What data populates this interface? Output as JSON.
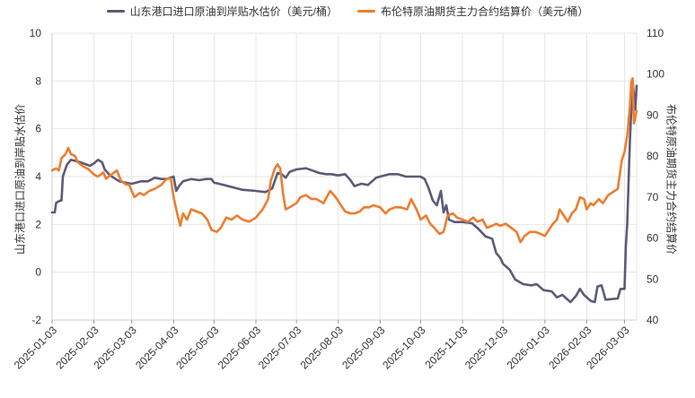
{
  "chart_data": {
    "type": "line",
    "title": "",
    "xlabel": "",
    "ylabel_left": "山东港口进口原油到岸贴水估价",
    "ylabel_right": "布伦特原油期货主力合约结算价",
    "x_ticks": [
      "2025-01-03",
      "2025-02-03",
      "2025-03-03",
      "2025-04-03",
      "2025-05-03",
      "2025-06-03",
      "2025-07-03",
      "2025-08-03",
      "2025-09-03",
      "2025-10-03",
      "2025-11-03",
      "2025-12-03",
      "2026-01-03",
      "2026-02-03",
      "2026-03-03"
    ],
    "x_range": [
      "2025-01-03",
      "2026-03-12"
    ],
    "y_left": {
      "min": -2,
      "max": 10,
      "ticks": [
        -2,
        0,
        2,
        4,
        6,
        8,
        10
      ]
    },
    "y_right": {
      "min": 40,
      "max": 110,
      "ticks": [
        40,
        50,
        60,
        70,
        80,
        90,
        100,
        110
      ]
    },
    "grid": true,
    "legend_position": "top",
    "series": [
      {
        "name": "山东港口进口原油到岸贴水估价（美元/桶）",
        "axis": "left",
        "color": "#5b5b78",
        "points": [
          [
            "2025-01-03",
            2.5
          ],
          [
            "2025-01-05",
            2.5
          ],
          [
            "2025-01-06",
            2.9
          ],
          [
            "2025-01-09",
            3.0
          ],
          [
            "2025-01-10",
            3.0
          ],
          [
            "2025-01-11",
            4.0
          ],
          [
            "2025-01-14",
            4.5
          ],
          [
            "2025-01-17",
            4.7
          ],
          [
            "2025-01-24",
            4.6
          ],
          [
            "2025-01-31",
            4.45
          ],
          [
            "2025-02-03",
            4.55
          ],
          [
            "2025-02-06",
            4.7
          ],
          [
            "2025-02-09",
            4.6
          ],
          [
            "2025-02-11",
            4.3
          ],
          [
            "2025-02-15",
            4.05
          ],
          [
            "2025-02-19",
            3.9
          ],
          [
            "2025-02-22",
            3.8
          ],
          [
            "2025-02-26",
            3.75
          ],
          [
            "2025-03-03",
            3.7
          ],
          [
            "2025-03-10",
            3.8
          ],
          [
            "2025-03-15",
            3.8
          ],
          [
            "2025-03-20",
            3.95
          ],
          [
            "2025-03-25",
            3.9
          ],
          [
            "2025-03-29",
            3.9
          ],
          [
            "2025-04-03",
            4.0
          ],
          [
            "2025-04-05",
            3.4
          ],
          [
            "2025-04-07",
            3.6
          ],
          [
            "2025-04-10",
            3.8
          ],
          [
            "2025-04-16",
            3.9
          ],
          [
            "2025-04-22",
            3.85
          ],
          [
            "2025-04-27",
            3.9
          ],
          [
            "2025-05-01",
            3.9
          ],
          [
            "2025-05-03",
            3.75
          ],
          [
            "2025-05-10",
            3.65
          ],
          [
            "2025-05-17",
            3.55
          ],
          [
            "2025-05-24",
            3.45
          ],
          [
            "2025-06-03",
            3.4
          ],
          [
            "2025-06-10",
            3.35
          ],
          [
            "2025-06-15",
            3.5
          ],
          [
            "2025-06-19",
            4.15
          ],
          [
            "2025-06-22",
            4.1
          ],
          [
            "2025-06-25",
            3.95
          ],
          [
            "2025-06-28",
            4.2
          ],
          [
            "2025-07-03",
            4.3
          ],
          [
            "2025-07-10",
            4.35
          ],
          [
            "2025-07-15",
            4.25
          ],
          [
            "2025-07-20",
            4.15
          ],
          [
            "2025-07-25",
            4.1
          ],
          [
            "2025-07-29",
            4.1
          ],
          [
            "2025-08-03",
            4.05
          ],
          [
            "2025-08-08",
            4.1
          ],
          [
            "2025-08-12",
            3.85
          ],
          [
            "2025-08-15",
            3.6
          ],
          [
            "2025-08-20",
            3.7
          ],
          [
            "2025-08-25",
            3.65
          ],
          [
            "2025-08-31",
            3.95
          ],
          [
            "2025-09-03",
            4.0
          ],
          [
            "2025-09-10",
            4.1
          ],
          [
            "2025-09-16",
            4.1
          ],
          [
            "2025-09-22",
            4.0
          ],
          [
            "2025-09-28",
            4.0
          ],
          [
            "2025-10-03",
            4.0
          ],
          [
            "2025-10-06",
            3.9
          ],
          [
            "2025-10-09",
            3.5
          ],
          [
            "2025-10-12",
            3.0
          ],
          [
            "2025-10-15",
            2.8
          ],
          [
            "2025-10-18",
            3.4
          ],
          [
            "2025-10-20",
            2.5
          ],
          [
            "2025-10-22",
            2.8
          ],
          [
            "2025-10-24",
            2.2
          ],
          [
            "2025-10-28",
            2.1
          ],
          [
            "2025-11-03",
            2.1
          ],
          [
            "2025-11-10",
            2.05
          ],
          [
            "2025-11-15",
            1.8
          ],
          [
            "2025-11-20",
            1.5
          ],
          [
            "2025-11-25",
            1.4
          ],
          [
            "2025-11-28",
            0.8
          ],
          [
            "2025-12-01",
            0.6
          ],
          [
            "2025-12-03",
            0.35
          ],
          [
            "2025-12-08",
            0.1
          ],
          [
            "2025-12-12",
            -0.3
          ],
          [
            "2025-12-18",
            -0.5
          ],
          [
            "2025-12-24",
            -0.55
          ],
          [
            "2025-12-28",
            -0.5
          ],
          [
            "2026-01-02",
            -0.75
          ],
          [
            "2026-01-08",
            -0.8
          ],
          [
            "2026-01-12",
            -1.05
          ],
          [
            "2026-01-16",
            -0.95
          ],
          [
            "2026-01-22",
            -1.25
          ],
          [
            "2026-01-26",
            -1.0
          ],
          [
            "2026-01-29",
            -0.7
          ],
          [
            "2026-02-01",
            -0.95
          ],
          [
            "2026-02-06",
            -1.2
          ],
          [
            "2026-02-09",
            -1.25
          ],
          [
            "2026-02-11",
            -0.6
          ],
          [
            "2026-02-14",
            -0.55
          ],
          [
            "2026-02-17",
            -1.15
          ],
          [
            "2026-02-26",
            -1.1
          ],
          [
            "2026-02-28",
            -0.7
          ],
          [
            "2026-03-03",
            -0.7
          ],
          [
            "2026-03-04",
            1.1
          ],
          [
            "2026-03-05",
            2.0
          ],
          [
            "2026-03-07",
            5.5
          ],
          [
            "2026-03-09",
            8.0
          ],
          [
            "2026-03-11",
            6.8
          ],
          [
            "2026-03-12",
            7.8
          ]
        ]
      },
      {
        "name": "布伦特原油期货主力合约结算价（美元/桶）",
        "axis": "right",
        "color": "#ed7d31",
        "points": [
          [
            "2025-01-03",
            76.5
          ],
          [
            "2025-01-06",
            77.0
          ],
          [
            "2025-01-08",
            76.5
          ],
          [
            "2025-01-10",
            79.5
          ],
          [
            "2025-01-13",
            80.5
          ],
          [
            "2025-01-15",
            82.0
          ],
          [
            "2025-01-17",
            80.5
          ],
          [
            "2025-01-20",
            80.0
          ],
          [
            "2025-01-22",
            78.5
          ],
          [
            "2025-01-26",
            77.5
          ],
          [
            "2025-01-30",
            76.8
          ],
          [
            "2025-02-03",
            75.5
          ],
          [
            "2025-02-06",
            75.0
          ],
          [
            "2025-02-10",
            76.0
          ],
          [
            "2025-02-12",
            74.5
          ],
          [
            "2025-02-16",
            75.5
          ],
          [
            "2025-02-20",
            76.5
          ],
          [
            "2025-02-23",
            74.0
          ],
          [
            "2025-02-27",
            73.0
          ],
          [
            "2025-03-01",
            73.0
          ],
          [
            "2025-03-05",
            70.0
          ],
          [
            "2025-03-09",
            71.0
          ],
          [
            "2025-03-12",
            70.5
          ],
          [
            "2025-03-16",
            71.5
          ],
          [
            "2025-03-20",
            72.0
          ],
          [
            "2025-03-25",
            73.0
          ],
          [
            "2025-03-29",
            74.5
          ],
          [
            "2025-04-01",
            74.5
          ],
          [
            "2025-04-03",
            70.0
          ],
          [
            "2025-04-06",
            65.5
          ],
          [
            "2025-04-08",
            63.0
          ],
          [
            "2025-04-10",
            66.0
          ],
          [
            "2025-04-13",
            64.5
          ],
          [
            "2025-04-16",
            67.0
          ],
          [
            "2025-04-20",
            66.5
          ],
          [
            "2025-04-24",
            66.0
          ],
          [
            "2025-04-28",
            64.5
          ],
          [
            "2025-05-01",
            62.0
          ],
          [
            "2025-05-05",
            61.5
          ],
          [
            "2025-05-08",
            62.5
          ],
          [
            "2025-05-12",
            65.0
          ],
          [
            "2025-05-16",
            64.5
          ],
          [
            "2025-05-20",
            65.5
          ],
          [
            "2025-05-24",
            64.5
          ],
          [
            "2025-05-29",
            64.0
          ],
          [
            "2025-06-03",
            65.0
          ],
          [
            "2025-06-08",
            67.0
          ],
          [
            "2025-06-12",
            69.5
          ],
          [
            "2025-06-14",
            74.0
          ],
          [
            "2025-06-17",
            77.0
          ],
          [
            "2025-06-19",
            78.0
          ],
          [
            "2025-06-21",
            77.0
          ],
          [
            "2025-06-23",
            71.0
          ],
          [
            "2025-06-25",
            67.0
          ],
          [
            "2025-06-28",
            67.5
          ],
          [
            "2025-07-03",
            68.5
          ],
          [
            "2025-07-06",
            70.0
          ],
          [
            "2025-07-10",
            70.5
          ],
          [
            "2025-07-14",
            69.5
          ],
          [
            "2025-07-18",
            69.5
          ],
          [
            "2025-07-23",
            68.5
          ],
          [
            "2025-07-28",
            71.5
          ],
          [
            "2025-08-01",
            70.0
          ],
          [
            "2025-08-05",
            68.0
          ],
          [
            "2025-08-08",
            66.5
          ],
          [
            "2025-08-12",
            66.0
          ],
          [
            "2025-08-15",
            66.0
          ],
          [
            "2025-08-19",
            66.5
          ],
          [
            "2025-08-22",
            67.5
          ],
          [
            "2025-08-26",
            67.5
          ],
          [
            "2025-08-29",
            68.0
          ],
          [
            "2025-09-03",
            67.5
          ],
          [
            "2025-09-07",
            66.0
          ],
          [
            "2025-09-10",
            67.0
          ],
          [
            "2025-09-14",
            67.5
          ],
          [
            "2025-09-18",
            67.5
          ],
          [
            "2025-09-23",
            67.0
          ],
          [
            "2025-09-26",
            69.5
          ],
          [
            "2025-09-30",
            67.0
          ],
          [
            "2025-10-03",
            64.5
          ],
          [
            "2025-10-07",
            65.5
          ],
          [
            "2025-10-10",
            63.5
          ],
          [
            "2025-10-13",
            62.5
          ],
          [
            "2025-10-17",
            61.0
          ],
          [
            "2025-10-20",
            61.5
          ],
          [
            "2025-10-23",
            65.5
          ],
          [
            "2025-10-27",
            66.0
          ],
          [
            "2025-10-30",
            65.0
          ],
          [
            "2025-11-03",
            64.5
          ],
          [
            "2025-11-07",
            64.0
          ],
          [
            "2025-11-11",
            65.0
          ],
          [
            "2025-11-14",
            64.0
          ],
          [
            "2025-11-18",
            64.5
          ],
          [
            "2025-11-21",
            62.5
          ],
          [
            "2025-11-25",
            63.0
          ],
          [
            "2025-11-28",
            63.5
          ],
          [
            "2025-12-01",
            63.0
          ],
          [
            "2025-12-05",
            63.5
          ],
          [
            "2025-12-09",
            62.5
          ],
          [
            "2025-12-13",
            61.5
          ],
          [
            "2025-12-16",
            59.0
          ],
          [
            "2025-12-19",
            60.5
          ],
          [
            "2025-12-23",
            61.5
          ],
          [
            "2025-12-27",
            61.5
          ],
          [
            "2025-12-31",
            61.0
          ],
          [
            "2026-01-03",
            60.5
          ],
          [
            "2026-01-06",
            62.0
          ],
          [
            "2026-01-09",
            63.5
          ],
          [
            "2026-01-12",
            64.5
          ],
          [
            "2026-01-14",
            67.0
          ],
          [
            "2026-01-17",
            65.5
          ],
          [
            "2026-01-20",
            64.0
          ],
          [
            "2026-01-23",
            66.0
          ],
          [
            "2026-01-26",
            67.0
          ],
          [
            "2026-01-29",
            70.0
          ],
          [
            "2026-02-01",
            69.5
          ],
          [
            "2026-02-03",
            67.0
          ],
          [
            "2026-02-06",
            68.5
          ],
          [
            "2026-02-08",
            68.0
          ],
          [
            "2026-02-12",
            69.5
          ],
          [
            "2026-02-15",
            68.5
          ],
          [
            "2026-02-19",
            70.5
          ],
          [
            "2026-02-26",
            72.0
          ],
          [
            "2026-03-01",
            79.0
          ],
          [
            "2026-03-03",
            81.0
          ],
          [
            "2026-03-05",
            85.0
          ],
          [
            "2026-03-07",
            92.0
          ],
          [
            "2026-03-08",
            98.0
          ],
          [
            "2026-03-09",
            99.0
          ],
          [
            "2026-03-10",
            88.0
          ],
          [
            "2026-03-12",
            91.0
          ]
        ]
      }
    ]
  }
}
